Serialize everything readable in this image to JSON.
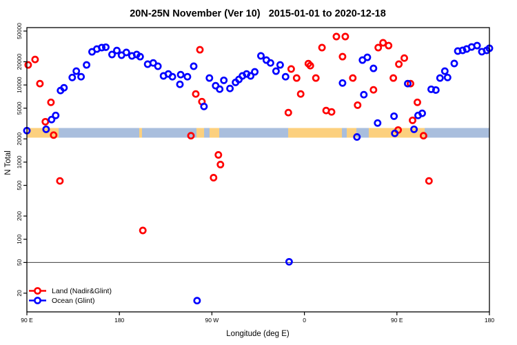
{
  "page": {
    "background": "#ffffff"
  },
  "chart_data": {
    "type": "scatter",
    "title": "20N-25N November (Ver 10)   2015-01-01 to 2020-12-18",
    "xlabel": "Longitude (deg E)",
    "ylabel": "N Total",
    "x_axis": {
      "tick_labels": [
        "90 E",
        "180",
        "90 W",
        "0",
        "90 E",
        "180"
      ],
      "tick_deg": [
        0,
        90,
        180,
        270,
        360,
        450
      ],
      "range_deg": [
        0,
        450
      ]
    },
    "y_axis": {
      "scale": "log",
      "ticks": [
        20,
        50,
        100,
        200,
        500,
        1000,
        2000,
        5000,
        10000,
        20000,
        50000
      ],
      "range": [
        11,
        55000
      ]
    },
    "reference_line": {
      "value": 50,
      "color": "#3c3c3c"
    },
    "map_band": {
      "description": "coastline strip 20N-25N",
      "value_top": 2770,
      "value_bottom": 2075,
      "ocean_color": "#a9bedd",
      "land_color": "#fcd07e",
      "land_segments_deg": [
        [
          0,
          30.9
        ],
        [
          109.3,
          112.0
        ],
        [
          165.0,
          172.4
        ],
        [
          177.7,
          187.1
        ],
        [
          254.2,
          306.5
        ],
        [
          311.2,
          320.6
        ],
        [
          332.6,
          387.0
        ]
      ]
    },
    "series": [
      {
        "name": "Land (Nadir&Glint)",
        "color": "#ff0000",
        "marker": "open-circle",
        "points": [
          [
            1.3,
            18200
          ],
          [
            8.0,
            21400
          ],
          [
            12.7,
            10400
          ],
          [
            18.0,
            3340
          ],
          [
            23.4,
            5960
          ],
          [
            26.0,
            2240
          ],
          [
            32.1,
            570
          ],
          [
            112.8,
            130
          ],
          [
            159.6,
            2200
          ],
          [
            164.3,
            7640
          ],
          [
            168.3,
            28600
          ],
          [
            170.3,
            6080
          ],
          [
            181.6,
            628
          ],
          [
            186.3,
            1240
          ],
          [
            188.3,
            930
          ],
          [
            254.4,
            4380
          ],
          [
            257.1,
            16100
          ],
          [
            262.4,
            12300
          ],
          [
            266.4,
            7640
          ],
          [
            273.8,
            18900
          ],
          [
            275.8,
            17800
          ],
          [
            281.1,
            12300
          ],
          [
            287.1,
            30500
          ],
          [
            291.1,
            4660
          ],
          [
            296.4,
            4470
          ],
          [
            301.1,
            42400
          ],
          [
            307.1,
            23300
          ],
          [
            309.8,
            42400
          ],
          [
            317.1,
            12300
          ],
          [
            321.8,
            5480
          ],
          [
            337.2,
            8650
          ],
          [
            341.8,
            30500
          ],
          [
            346.5,
            35200
          ],
          [
            351.9,
            32400
          ],
          [
            356.5,
            12300
          ],
          [
            361.2,
            2610
          ],
          [
            361.9,
            18600
          ],
          [
            367.2,
            22300
          ],
          [
            373.2,
            10400
          ],
          [
            375.2,
            3480
          ],
          [
            379.9,
            5960
          ],
          [
            385.9,
            2200
          ],
          [
            391.2,
            570
          ]
        ]
      },
      {
        "name": "Ocean (Glint)",
        "color": "#0000ff",
        "marker": "open-circle",
        "points": [
          [
            0,
            2560
          ],
          [
            18.7,
            2660
          ],
          [
            24.0,
            3560
          ],
          [
            28.0,
            4030
          ],
          [
            32.7,
            8470
          ],
          [
            36.1,
            9200
          ],
          [
            44.1,
            12500
          ],
          [
            48.1,
            15100
          ],
          [
            52.7,
            12800
          ],
          [
            58.1,
            18200
          ],
          [
            63.4,
            26900
          ],
          [
            68.1,
            29200
          ],
          [
            72.8,
            30500
          ],
          [
            76.8,
            30900
          ],
          [
            82.8,
            24800
          ],
          [
            87.5,
            28000
          ],
          [
            92.1,
            24300
          ],
          [
            96.8,
            26400
          ],
          [
            102.2,
            23800
          ],
          [
            106.8,
            24800
          ],
          [
            110.2,
            23300
          ],
          [
            117.5,
            18600
          ],
          [
            122.9,
            19300
          ],
          [
            127.5,
            17500
          ],
          [
            132.9,
            13100
          ],
          [
            137.6,
            13900
          ],
          [
            141.6,
            12800
          ],
          [
            148.9,
            10200
          ],
          [
            149.6,
            13600
          ],
          [
            156.2,
            12800
          ],
          [
            162.3,
            17500
          ],
          [
            165.6,
            16
          ],
          [
            172.3,
            5260
          ],
          [
            177.6,
            12300
          ],
          [
            183.6,
            9790
          ],
          [
            187.6,
            8830
          ],
          [
            191.6,
            11500
          ],
          [
            197.6,
            9020
          ],
          [
            203.0,
            10800
          ],
          [
            206.3,
            11800
          ],
          [
            209.7,
            13100
          ],
          [
            213.7,
            13900
          ],
          [
            217.7,
            13100
          ],
          [
            221.7,
            14800
          ],
          [
            227.7,
            23800
          ],
          [
            233.0,
            21000
          ],
          [
            237.0,
            19300
          ],
          [
            242.4,
            15100
          ],
          [
            246.4,
            18200
          ],
          [
            251.7,
            12800
          ],
          [
            255.1,
            51
          ],
          [
            307.1,
            10600
          ],
          [
            321.1,
            2120
          ],
          [
            326.5,
            21000
          ],
          [
            327.8,
            7480
          ],
          [
            331.2,
            22800
          ],
          [
            337.2,
            16400
          ],
          [
            341.2,
            3210
          ],
          [
            357.2,
            3940
          ],
          [
            357.9,
            2360
          ],
          [
            370.5,
            10400
          ],
          [
            376.6,
            2660
          ],
          [
            380.6,
            4030
          ],
          [
            384.6,
            4290
          ],
          [
            393.3,
            8790
          ],
          [
            397.9,
            8600
          ],
          [
            401.9,
            12300
          ],
          [
            406.6,
            15100
          ],
          [
            409.3,
            12500
          ],
          [
            415.8,
            19000
          ],
          [
            419.2,
            27500
          ],
          [
            423.9,
            28100
          ],
          [
            427.9,
            29300
          ],
          [
            432.6,
            31100
          ],
          [
            438.0,
            32400
          ],
          [
            442.6,
            27000
          ],
          [
            447.3,
            28100
          ],
          [
            450.0,
            29900
          ]
        ]
      }
    ]
  }
}
